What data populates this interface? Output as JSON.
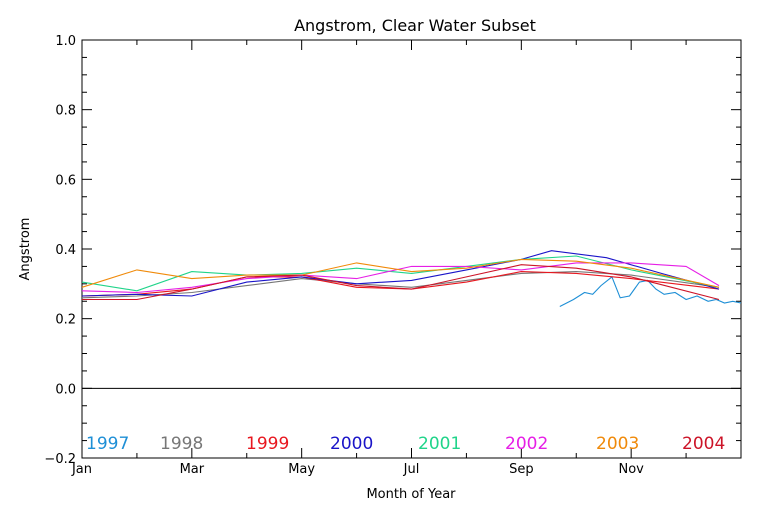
{
  "chart_data": {
    "type": "line",
    "title": "Angstrom, Clear Water Subset",
    "xlabel": "Month of Year",
    "ylabel": "Angstrom",
    "xlim": [
      1,
      13
    ],
    "ylim": [
      -0.2,
      1.0
    ],
    "x_ticks": [
      {
        "value": 1,
        "label": "Jan"
      },
      {
        "value": 3,
        "label": "Mar"
      },
      {
        "value": 5,
        "label": "May"
      },
      {
        "value": 7,
        "label": "Jul"
      },
      {
        "value": 9,
        "label": "Sep"
      },
      {
        "value": 11,
        "label": "Nov"
      }
    ],
    "y_ticks": [
      {
        "value": -0.2,
        "label": "−0.2"
      },
      {
        "value": 0.0,
        "label": "0.0"
      },
      {
        "value": 0.2,
        "label": "0.2"
      },
      {
        "value": 0.4,
        "label": "0.4"
      },
      {
        "value": 0.6,
        "label": "0.6"
      },
      {
        "value": 0.8,
        "label": "0.8"
      },
      {
        "value": 1.0,
        "label": "1.0"
      }
    ],
    "reference_line_y": 0.0,
    "grid": false,
    "legend_position": "bottom",
    "series": [
      {
        "name": "1997",
        "color": "#1e8fd6",
        "x": [
          9.7,
          9.95,
          10.15,
          10.3,
          10.45,
          10.65,
          10.8,
          10.97,
          11.15,
          11.3,
          11.45,
          11.6,
          11.8,
          12.0,
          12.2,
          12.4,
          12.55,
          12.7,
          12.85,
          13.0
        ],
        "y": [
          0.235,
          0.255,
          0.275,
          0.27,
          0.295,
          0.32,
          0.26,
          0.265,
          0.305,
          0.31,
          0.285,
          0.27,
          0.275,
          0.255,
          0.265,
          0.25,
          0.255,
          0.245,
          0.25,
          0.245
        ]
      },
      {
        "name": "1998",
        "color": "#777777",
        "x": [
          1,
          2,
          3,
          4,
          5,
          6,
          7,
          8,
          9,
          10,
          11,
          12.6
        ],
        "y": [
          0.26,
          0.265,
          0.275,
          0.295,
          0.315,
          0.3,
          0.29,
          0.31,
          0.33,
          0.335,
          0.325,
          0.29
        ]
      },
      {
        "name": "1999",
        "color": "#e8171f",
        "x": [
          1,
          2,
          3,
          4,
          5,
          6,
          7,
          8,
          9,
          10,
          11,
          12.6
        ],
        "y": [
          0.265,
          0.27,
          0.285,
          0.32,
          0.32,
          0.29,
          0.285,
          0.305,
          0.335,
          0.33,
          0.315,
          0.285
        ]
      },
      {
        "name": "2000",
        "color": "#1a14c8",
        "x": [
          1,
          2,
          3,
          4,
          5,
          6,
          7,
          8,
          9,
          9.55,
          10.55,
          11.55,
          12.6
        ],
        "y": [
          0.265,
          0.27,
          0.265,
          0.305,
          0.32,
          0.3,
          0.31,
          0.34,
          0.37,
          0.395,
          0.375,
          0.33,
          0.285
        ]
      },
      {
        "name": "2001",
        "color": "#20d48a",
        "x": [
          1,
          2,
          3,
          4,
          5,
          6,
          7,
          8,
          9,
          10,
          11,
          12.6
        ],
        "y": [
          0.305,
          0.28,
          0.335,
          0.325,
          0.33,
          0.345,
          0.33,
          0.35,
          0.37,
          0.38,
          0.34,
          0.29
        ]
      },
      {
        "name": "2002",
        "color": "#e61fe6",
        "x": [
          1,
          2,
          3,
          4,
          5,
          6,
          7,
          8,
          9,
          10,
          11,
          12,
          12.6
        ],
        "y": [
          0.28,
          0.275,
          0.29,
          0.315,
          0.325,
          0.315,
          0.35,
          0.35,
          0.34,
          0.36,
          0.36,
          0.35,
          0.295
        ]
      },
      {
        "name": "2003",
        "color": "#f08a0a",
        "x": [
          1,
          2,
          3,
          4,
          5,
          6,
          7,
          8,
          9,
          10,
          11,
          12.6
        ],
        "y": [
          0.29,
          0.34,
          0.315,
          0.325,
          0.325,
          0.36,
          0.335,
          0.345,
          0.37,
          0.365,
          0.345,
          0.29
        ]
      },
      {
        "name": "2004",
        "color": "#cc1428",
        "x": [
          1,
          2,
          3,
          4,
          5,
          6,
          7,
          8,
          9,
          10,
          11,
          12.6
        ],
        "y": [
          0.255,
          0.255,
          0.285,
          0.32,
          0.325,
          0.295,
          0.285,
          0.32,
          0.355,
          0.345,
          0.32,
          0.255
        ]
      }
    ]
  }
}
